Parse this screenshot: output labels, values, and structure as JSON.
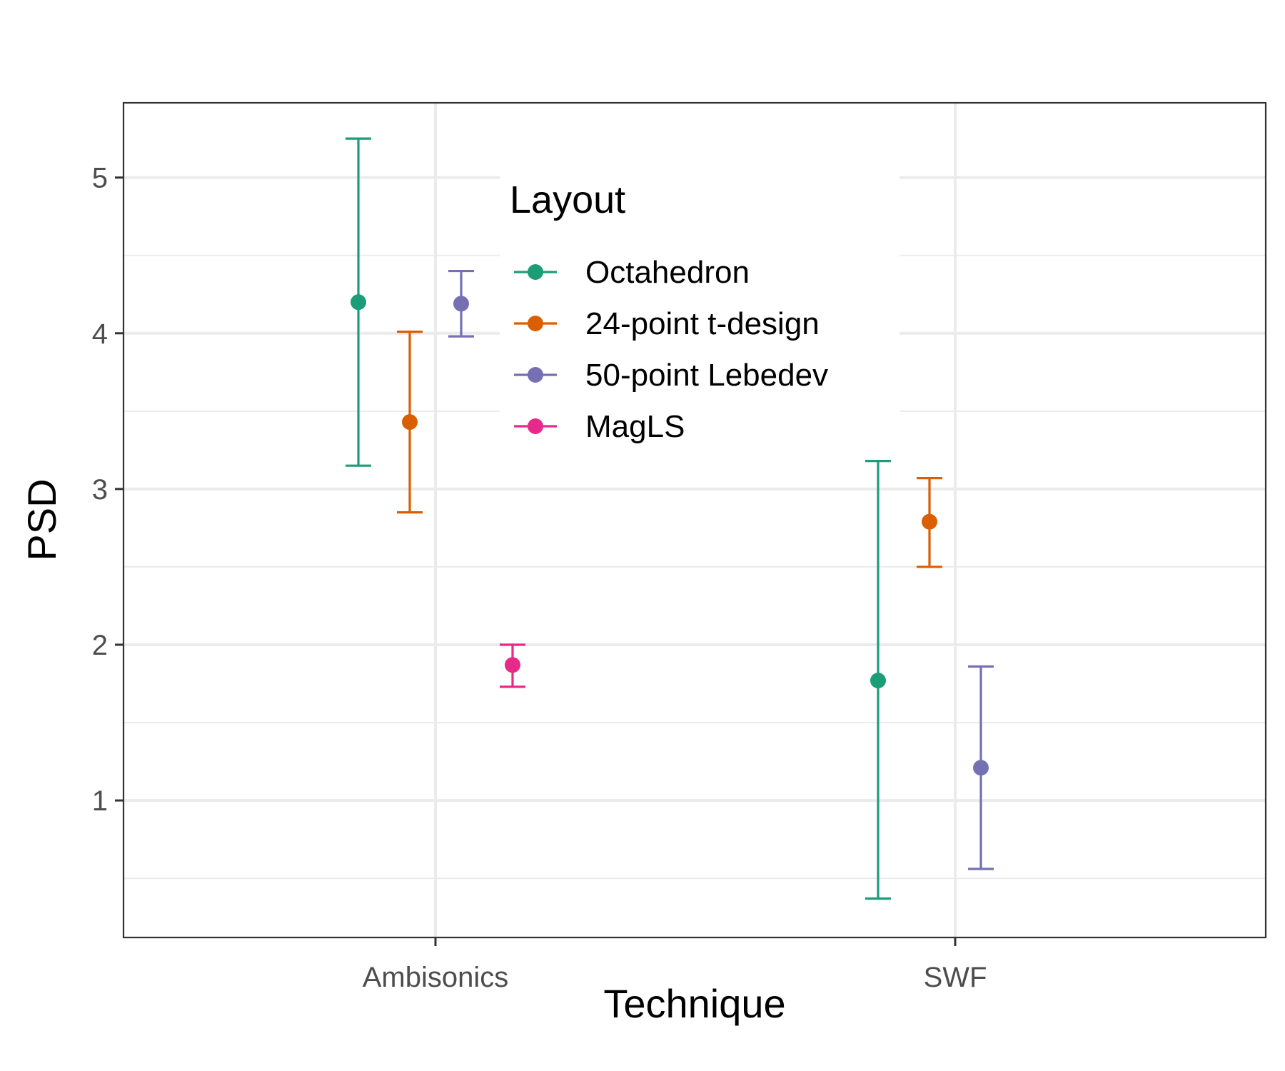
{
  "chart_data": {
    "type": "scatter",
    "subtype": "point-with-errorbars",
    "title": "",
    "xlabel": "Technique",
    "ylabel": "PSD",
    "categories": [
      "Ambisonics",
      "SWF"
    ],
    "ylim": [
      0.12,
      5.48
    ],
    "yticks": [
      1,
      2,
      3,
      4,
      5
    ],
    "grid": true,
    "legend": {
      "title": "Layout",
      "placement": "inside top-center",
      "entries": [
        "Octahedron",
        "24-point t-design",
        "50-point Lebedev",
        "MagLS"
      ]
    },
    "series": [
      {
        "name": "Octahedron",
        "color": "#1b9e77",
        "points": [
          {
            "category": "Ambisonics",
            "y": 4.2,
            "ymin": 3.15,
            "ymax": 5.25
          },
          {
            "category": "SWF",
            "y": 1.77,
            "ymin": 0.37,
            "ymax": 3.18
          }
        ]
      },
      {
        "name": "24-point t-design",
        "color": "#d95f02",
        "points": [
          {
            "category": "Ambisonics",
            "y": 3.43,
            "ymin": 2.85,
            "ymax": 4.01
          },
          {
            "category": "SWF",
            "y": 2.79,
            "ymin": 2.5,
            "ymax": 3.07
          }
        ]
      },
      {
        "name": "50-point Lebedev",
        "color": "#7570b3",
        "points": [
          {
            "category": "Ambisonics",
            "y": 4.19,
            "ymin": 3.98,
            "ymax": 4.4
          },
          {
            "category": "SWF",
            "y": 1.21,
            "ymin": 0.56,
            "ymax": 1.86
          }
        ]
      },
      {
        "name": "MagLS",
        "color": "#e7298a",
        "points": [
          {
            "category": "Ambisonics",
            "y": 1.87,
            "ymin": 1.73,
            "ymax": 2.0
          }
        ]
      }
    ]
  }
}
